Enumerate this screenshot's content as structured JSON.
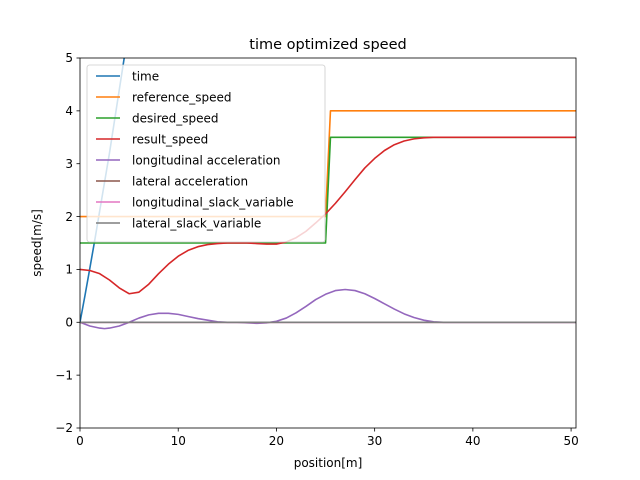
{
  "chart_data": {
    "type": "line",
    "title": "time optimized speed",
    "xlabel": "position[m]",
    "ylabel": "speed[m/s]",
    "xlim": [
      0,
      50.5
    ],
    "ylim": [
      -2,
      5
    ],
    "xticks": [
      0,
      10,
      20,
      30,
      40,
      50
    ],
    "yticks": [
      -2,
      -1,
      0,
      1,
      2,
      3,
      4,
      5
    ],
    "grid": false,
    "legend_position": "upper-left",
    "series": [
      {
        "name": "time",
        "color": "#1f77b4",
        "x": [
          0,
          0.5,
          1,
          1.5,
          2,
          2.5,
          3,
          3.5,
          4,
          4.5
        ],
        "y": [
          0,
          0.5,
          1.02,
          1.55,
          2.1,
          2.65,
          3.2,
          3.8,
          4.4,
          5.0
        ]
      },
      {
        "name": "reference_speed",
        "color": "#ff7f0e",
        "x": [
          0,
          25,
          25.5,
          50.5
        ],
        "y": [
          2,
          2,
          4,
          4
        ]
      },
      {
        "name": "desired_speed",
        "color": "#2ca02c",
        "x": [
          0,
          25,
          25.5,
          50.5
        ],
        "y": [
          1.5,
          1.5,
          3.5,
          3.5
        ]
      },
      {
        "name": "result_speed",
        "color": "#d62728",
        "x": [
          0,
          1,
          2,
          3,
          4,
          5,
          6,
          7,
          8,
          9,
          10,
          11,
          12,
          13,
          14,
          15,
          16,
          17,
          18,
          19,
          20,
          21,
          22,
          23,
          24,
          25,
          26,
          27,
          28,
          29,
          30,
          31,
          32,
          33,
          34,
          35,
          36,
          37,
          38,
          40,
          42,
          45,
          50.5
        ],
        "y": [
          1.0,
          0.98,
          0.92,
          0.8,
          0.65,
          0.54,
          0.57,
          0.72,
          0.92,
          1.1,
          1.25,
          1.36,
          1.43,
          1.47,
          1.49,
          1.5,
          1.5,
          1.5,
          1.49,
          1.48,
          1.48,
          1.52,
          1.6,
          1.72,
          1.88,
          2.05,
          2.25,
          2.47,
          2.7,
          2.92,
          3.1,
          3.25,
          3.36,
          3.43,
          3.47,
          3.49,
          3.5,
          3.5,
          3.5,
          3.5,
          3.5,
          3.5,
          3.5
        ]
      },
      {
        "name": "longitudinal acceleration",
        "color": "#9467bd",
        "x": [
          0,
          1,
          2,
          2.5,
          3,
          4,
          5,
          6,
          7,
          8,
          9,
          10,
          11,
          12,
          13,
          14,
          15,
          16,
          17,
          18,
          19,
          20,
          21,
          22,
          23,
          24,
          25,
          26,
          27,
          28,
          29,
          30,
          31,
          32,
          33,
          34,
          35,
          36,
          37,
          38,
          40,
          45,
          50.5
        ],
        "y": [
          0,
          -0.07,
          -0.11,
          -0.12,
          -0.11,
          -0.07,
          0.0,
          0.08,
          0.14,
          0.17,
          0.17,
          0.15,
          0.11,
          0.07,
          0.04,
          0.01,
          0.0,
          0.0,
          -0.01,
          -0.02,
          -0.01,
          0.02,
          0.08,
          0.18,
          0.3,
          0.43,
          0.53,
          0.6,
          0.62,
          0.6,
          0.54,
          0.45,
          0.35,
          0.25,
          0.16,
          0.09,
          0.04,
          0.01,
          0.0,
          0.0,
          0.0,
          0.0,
          0.0
        ]
      },
      {
        "name": "lateral acceleration",
        "color": "#8c564b",
        "x": [
          0,
          50.5
        ],
        "y": [
          0,
          0
        ]
      },
      {
        "name": "longitudinal_slack_variable",
        "color": "#e377c2",
        "x": [
          0,
          50.5
        ],
        "y": [
          0,
          0
        ]
      },
      {
        "name": "lateral_slack_variable",
        "color": "#7f7f7f",
        "x": [
          0,
          50.5
        ],
        "y": [
          0,
          0
        ]
      }
    ]
  }
}
